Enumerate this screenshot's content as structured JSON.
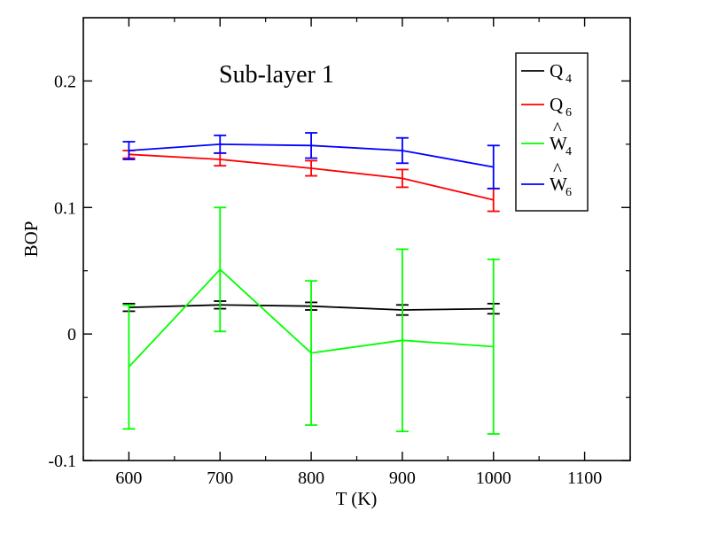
{
  "chart_data": {
    "type": "line",
    "title": "",
    "annotation": "Sub-layer 1",
    "xlabel": "T (K)",
    "ylabel": "BOP",
    "xlim": [
      550,
      1150
    ],
    "ylim": [
      -0.1,
      0.25
    ],
    "x_ticks": [
      600,
      700,
      800,
      900,
      1000,
      1100
    ],
    "y_ticks": [
      -0.1,
      0,
      0.1,
      0.2
    ],
    "x_tick_labels": [
      "600",
      "700",
      "800",
      "900",
      "1000",
      "1100"
    ],
    "y_tick_labels": [
      "-0.1",
      "0",
      "0.1",
      "0.2"
    ],
    "grid": false,
    "legend_position": "top-right",
    "series": [
      {
        "name": "Q4",
        "legend_main": "Q",
        "legend_sub": "4",
        "legend_hat": "",
        "color": "#000000",
        "x": [
          600,
          700,
          800,
          900,
          1000
        ],
        "y": [
          0.021,
          0.023,
          0.022,
          0.019,
          0.02
        ],
        "err": [
          0.003,
          0.003,
          0.003,
          0.004,
          0.004
        ]
      },
      {
        "name": "Q6",
        "legend_main": "Q",
        "legend_sub": "6",
        "legend_hat": "",
        "color": "#ff0000",
        "x": [
          600,
          700,
          800,
          900,
          1000
        ],
        "y": [
          0.142,
          0.138,
          0.131,
          0.123,
          0.106
        ],
        "err": [
          0.003,
          0.005,
          0.006,
          0.007,
          0.009
        ]
      },
      {
        "name": "W4",
        "legend_main": "W",
        "legend_sub": "4",
        "legend_hat": "^",
        "color": "#00ff00",
        "x": [
          600,
          700,
          800,
          900,
          1000
        ],
        "y": [
          -0.026,
          0.051,
          -0.015,
          -0.005,
          -0.01
        ],
        "err": [
          0.049,
          0.049,
          0.057,
          0.072,
          0.069
        ]
      },
      {
        "name": "W6",
        "legend_main": "W",
        "legend_sub": "6",
        "legend_hat": "^",
        "color": "#0000ff",
        "x": [
          600,
          700,
          800,
          900,
          1000
        ],
        "y": [
          0.145,
          0.15,
          0.149,
          0.145,
          0.132
        ],
        "err": [
          0.007,
          0.007,
          0.01,
          0.01,
          0.017
        ]
      }
    ]
  }
}
